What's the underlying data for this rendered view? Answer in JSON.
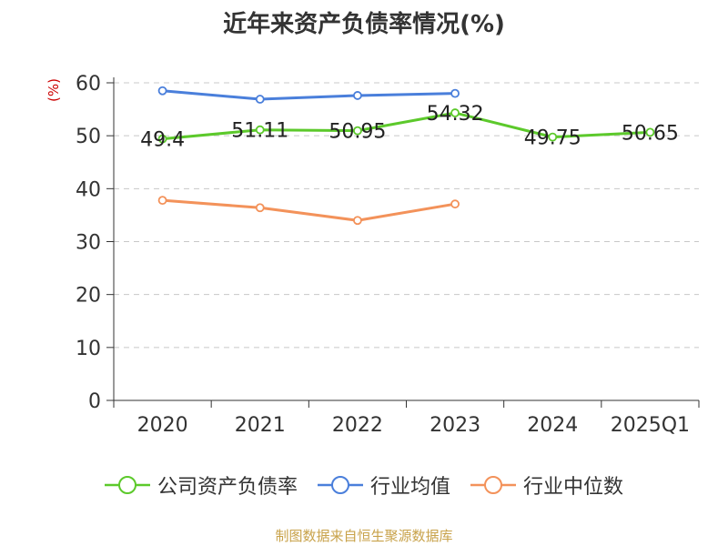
{
  "title": "近年来资产负债率情况(%)",
  "unit_label": "(%)",
  "source": "制图数据来自恒生聚源数据库",
  "chart_data": {
    "type": "line",
    "title": "近年来资产负债率情况(%)",
    "ylabel": "(%)",
    "categories": [
      "2020",
      "2021",
      "2022",
      "2023",
      "2024",
      "2025Q1"
    ],
    "ylim": [
      0,
      60
    ],
    "yticks": [
      0,
      10,
      20,
      30,
      40,
      50,
      60
    ],
    "grid": true,
    "legend_position": "bottom",
    "series": [
      {
        "name": "公司资产负债率",
        "color": "#5cc92b",
        "show_labels": true,
        "values": [
          49.4,
          51.11,
          50.95,
          54.32,
          49.75,
          50.65
        ]
      },
      {
        "name": "行业均值",
        "color": "#4a7fdb",
        "show_labels": false,
        "values": [
          58.5,
          56.9,
          57.6,
          58.0,
          null,
          null
        ]
      },
      {
        "name": "行业中位数",
        "color": "#f3925a",
        "show_labels": false,
        "values": [
          37.8,
          36.4,
          34.0,
          37.1,
          null,
          null
        ]
      }
    ]
  }
}
